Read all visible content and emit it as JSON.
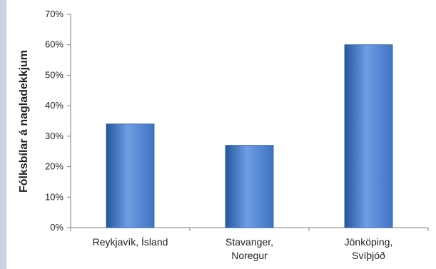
{
  "chart_data": {
    "type": "bar",
    "categories": [
      [
        "Reykjavík, Ísland"
      ],
      [
        "Stavanger,",
        "Noregur"
      ],
      [
        "Jönköping,",
        "Svíþjóð"
      ]
    ],
    "values": [
      0.34,
      0.27,
      0.6
    ],
    "ylabel": "Fólksbílar á nagladekkjum",
    "xlabel": "",
    "title": "",
    "ylim": [
      0,
      0.7
    ],
    "yticks": [
      "0%",
      "10%",
      "20%",
      "30%",
      "40%",
      "50%",
      "60%",
      "70%"
    ],
    "grid": false,
    "bar_color": "#3f74c4",
    "bar_highlight": "#6e9ee3",
    "bar_shadow": "#24569f"
  }
}
